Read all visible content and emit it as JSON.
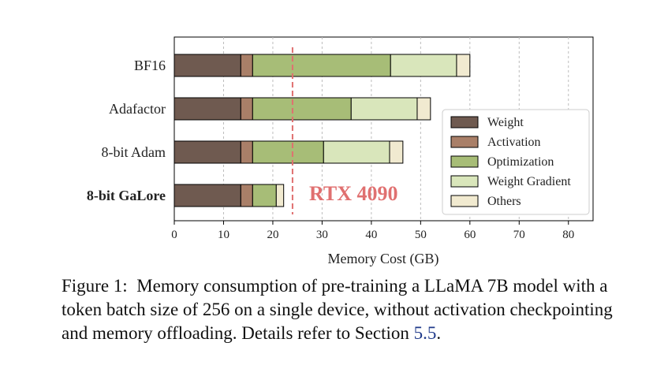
{
  "chart_data": {
    "type": "bar",
    "orientation": "horizontal",
    "stacked": true,
    "categories": [
      "BF16",
      "Adafactor",
      "8-bit Adam",
      "8-bit GaLore"
    ],
    "bold_categories": [
      "8-bit GaLore"
    ],
    "series": [
      {
        "name": "Weight",
        "color": "#6f5a50",
        "values": [
          13.5,
          13.5,
          13.5,
          13.5
        ]
      },
      {
        "name": "Activation",
        "color": "#a97f68",
        "values": [
          2.4,
          2.4,
          2.4,
          2.4
        ]
      },
      {
        "name": "Optimization",
        "color": "#a7bd77",
        "values": [
          28.0,
          20.0,
          14.4,
          4.8
        ]
      },
      {
        "name": "Weight Gradient",
        "color": "#d9e6bb",
        "values": [
          13.4,
          13.4,
          13.4,
          0.0
        ]
      },
      {
        "name": "Others",
        "color": "#f1ead0",
        "values": [
          2.7,
          2.7,
          2.7,
          1.5
        ]
      }
    ],
    "xlabel": "Memory Cost (GB)",
    "xlim": [
      0,
      85
    ],
    "xticks": [
      0,
      10,
      20,
      30,
      40,
      50,
      60,
      70,
      80
    ],
    "grid": "vertical-dashed",
    "legend_placement": "lower-right",
    "reference_line": {
      "value": 24,
      "label": "RTX 4090",
      "color": "#e07070"
    }
  },
  "caption": {
    "prefix": "Figure 1:",
    "text": "Memory consumption of pre-training a LLaMA 7B model with a token batch size of 256 on a single device, without activation checkpointing and memory offloading. Details refer to Section",
    "section_ref": "5.5",
    "suffix": "."
  }
}
